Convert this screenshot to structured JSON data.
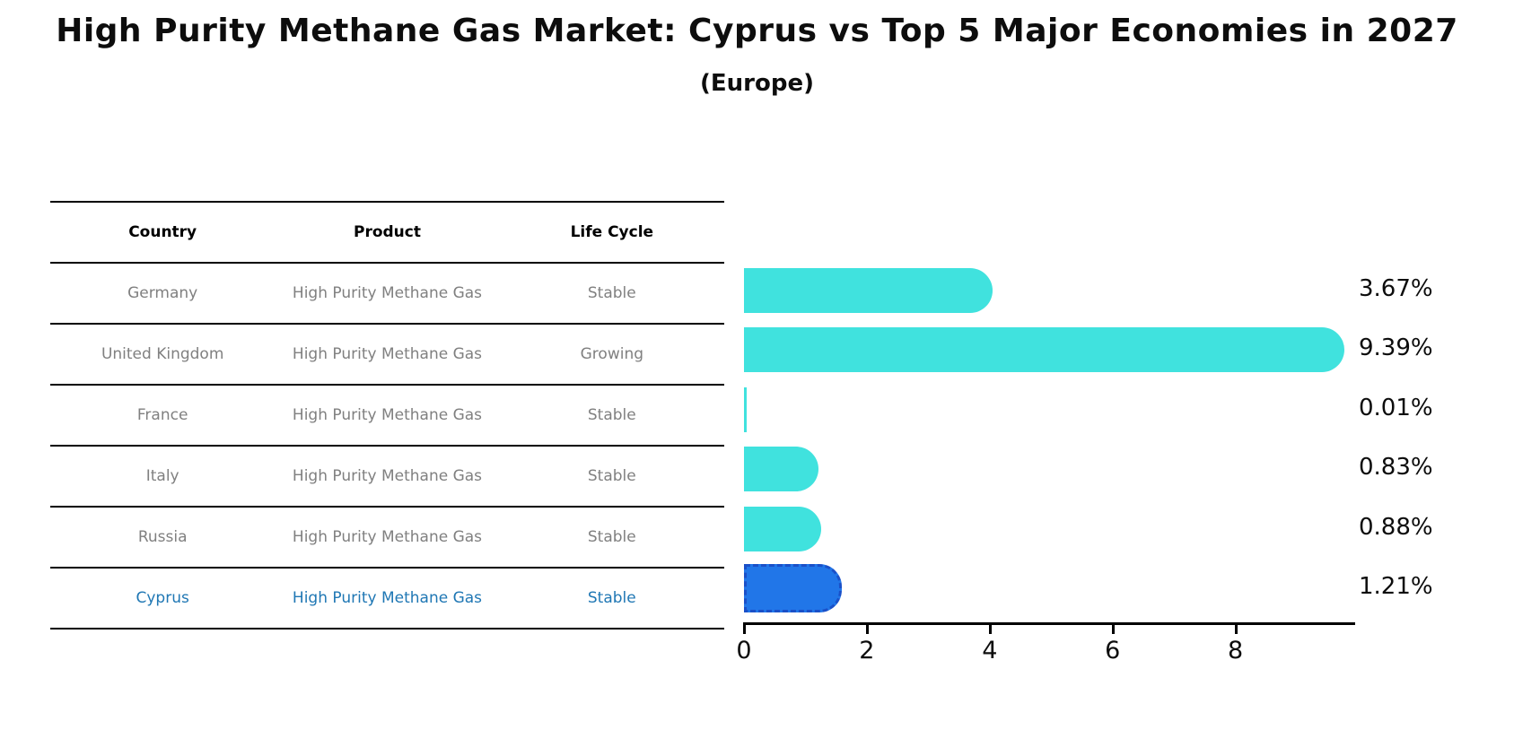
{
  "title": "High Purity Methane Gas Market: Cyprus vs Top 5 Major Economies in 2027",
  "subtitle": "(Europe)",
  "table": {
    "headers": [
      "Country",
      "Product",
      "Life Cycle"
    ],
    "rows": [
      {
        "country": "Germany",
        "product": "High Purity Methane Gas",
        "life_cycle": "Stable",
        "highlighted": false
      },
      {
        "country": "United Kingdom",
        "product": "High Purity Methane Gas",
        "life_cycle": "Growing",
        "highlighted": false
      },
      {
        "country": "France",
        "product": "High Purity Methane Gas",
        "life_cycle": "Stable",
        "highlighted": false
      },
      {
        "country": "Italy",
        "product": "High Purity Methane Gas",
        "life_cycle": "Stable",
        "highlighted": false
      },
      {
        "country": "Russia",
        "product": "High Purity Methane Gas",
        "life_cycle": "Stable",
        "highlighted": false
      },
      {
        "country": "Cyprus",
        "product": "High Purity Methane Gas",
        "life_cycle": "Stable",
        "highlighted": true
      }
    ]
  },
  "chart_data": {
    "type": "bar",
    "orientation": "horizontal",
    "title": "High Purity Methane Gas Market: Cyprus vs Top 5 Major Economies in 2027 (Europe)",
    "categories": [
      "Germany",
      "United Kingdom",
      "France",
      "Italy",
      "Russia",
      "Cyprus"
    ],
    "values": [
      3.67,
      9.39,
      0.01,
      0.83,
      0.88,
      1.21
    ],
    "value_labels": [
      "3.67%",
      "9.39%",
      "0.01%",
      "0.83%",
      "0.88%",
      "1.21%"
    ],
    "xticks": [
      0,
      2,
      4,
      6,
      8
    ],
    "xtick_labels": [
      "0",
      "2",
      "4",
      "6",
      "8"
    ],
    "xlim": [
      0,
      9.9
    ],
    "grid": false,
    "legend": "none",
    "bar_color": "#40E2DE",
    "highlight_index": 5,
    "highlight_color": "#2176E8",
    "highlight_border_color": "#1A50C8",
    "highlight_text_color": "#1F77B4",
    "muted_text_color": "#808080"
  }
}
